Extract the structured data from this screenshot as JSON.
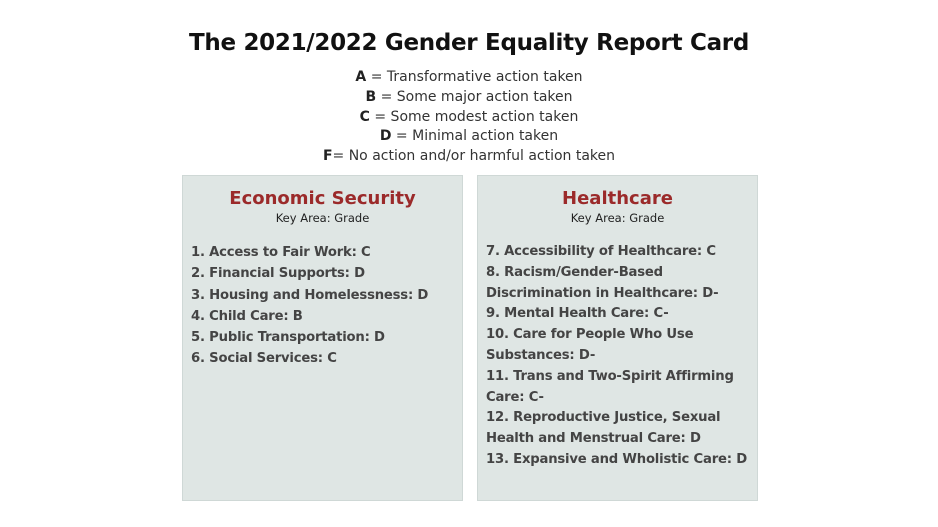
{
  "title": "The 2021/2022 Gender Equality Report Card",
  "legend": [
    {
      "grade": "A",
      "text": " = Transformative action taken"
    },
    {
      "grade": "B",
      "text": " = Some major action taken"
    },
    {
      "grade": "C",
      "text": " = Some modest action taken"
    },
    {
      "grade": "D",
      "text": " = Minimal action taken"
    },
    {
      "grade": "F",
      "text": "= No action and/or harmful action taken"
    }
  ],
  "panels": [
    {
      "title": "Economic Security",
      "subtitle": "Key Area: Grade",
      "items": [
        "1. Access to Fair Work: C",
        "2. Financial Supports: D",
        "3. Housing and Homelessness: D",
        "4. Child Care: B",
        "5. Public Transportation: D",
        "6. Social Services: C"
      ]
    },
    {
      "title": "Healthcare",
      "subtitle": "Key Area: Grade",
      "items": [
        "7. Accessibility of Healthcare: C",
        "8. Racism/Gender-Based Discrimination in Healthcare: D-",
        "9. Mental Health Care: C-",
        "10. Care for People Who Use Substances: D-",
        "11. Trans and Two-Spirit Affirming Care: C-",
        "12. Reproductive Justice, Sexual Health and Menstrual Care: D",
        "13. Expansive and Wholistic Care: D"
      ]
    }
  ]
}
